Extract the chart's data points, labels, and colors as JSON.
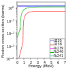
{
  "title": "",
  "xlabel": "Energy (MeV)",
  "ylabel": "Fission cross-section (barns)",
  "xlim": [
    0,
    7
  ],
  "ylim": [
    0.0001,
    3.0
  ],
  "legend_entries": [
    "U235",
    "U238",
    "Pu239",
    "Pu240",
    "Pu241"
  ],
  "line_colors": [
    "#6666ff",
    "#ff2222",
    "#ff44ff",
    "#00bb00",
    "#00bbbb"
  ],
  "background_color": "#ffffff",
  "label_fontsize": 4,
  "tick_fontsize": 3.5,
  "legend_fontsize": 3.5
}
